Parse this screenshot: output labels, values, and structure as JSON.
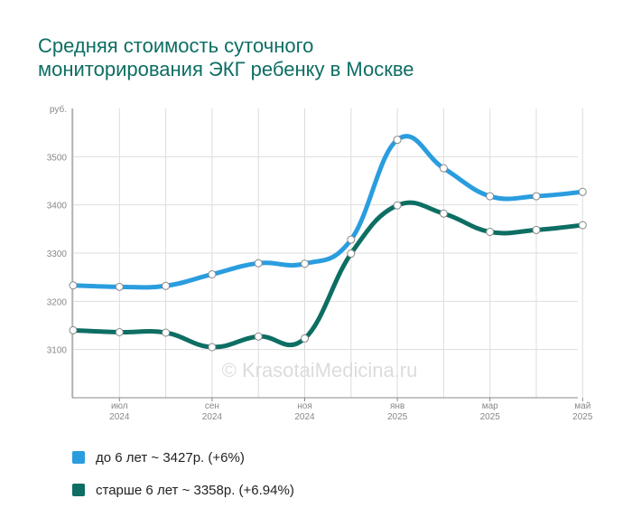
{
  "title_line1": "Средняя стоимость суточного",
  "title_line2": "мониторирования ЭКГ ребенку в Москве",
  "watermark": "© KrasotaiMedicina.ru",
  "colors": {
    "title": "#0d6e63",
    "series1": "#2a9ddf",
    "series2": "#0d6e63",
    "grid": "#dddddd"
  },
  "chart_data": {
    "type": "line",
    "y_unit": "руб.",
    "ylim": [
      3000,
      3600
    ],
    "yticks": [
      3100,
      3200,
      3300,
      3400,
      3500
    ],
    "x": [
      "2024-06",
      "2024-07",
      "2024-08",
      "2024-09",
      "2024-10",
      "2024-11",
      "2024-12",
      "2025-01",
      "2025-02",
      "2025-03",
      "2025-04",
      "2025-05"
    ],
    "xtick_labels": [
      {
        "at": "2024-07",
        "month": "июл",
        "year": "2024"
      },
      {
        "at": "2024-09",
        "month": "сен",
        "year": "2024"
      },
      {
        "at": "2024-11",
        "month": "ноя",
        "year": "2024"
      },
      {
        "at": "2025-01",
        "month": "янв",
        "year": "2025"
      },
      {
        "at": "2025-03",
        "month": "мар",
        "year": "2025"
      },
      {
        "at": "2025-05",
        "month": "май",
        "year": "2025"
      }
    ],
    "grid": true,
    "series": [
      {
        "name": "до 6 лет ~ 3427р. (+6%)",
        "color": "#2a9ddf",
        "values": [
          3233,
          3230,
          3232,
          3256,
          3279,
          3278,
          3328,
          3535,
          3476,
          3418,
          3418,
          3427
        ]
      },
      {
        "name": "старше 6 лет ~ 3358р. (+6.94%)",
        "color": "#0d6e63",
        "values": [
          3140,
          3136,
          3135,
          3105,
          3127,
          3123,
          3299,
          3399,
          3382,
          3344,
          3348,
          3358
        ]
      }
    ]
  }
}
